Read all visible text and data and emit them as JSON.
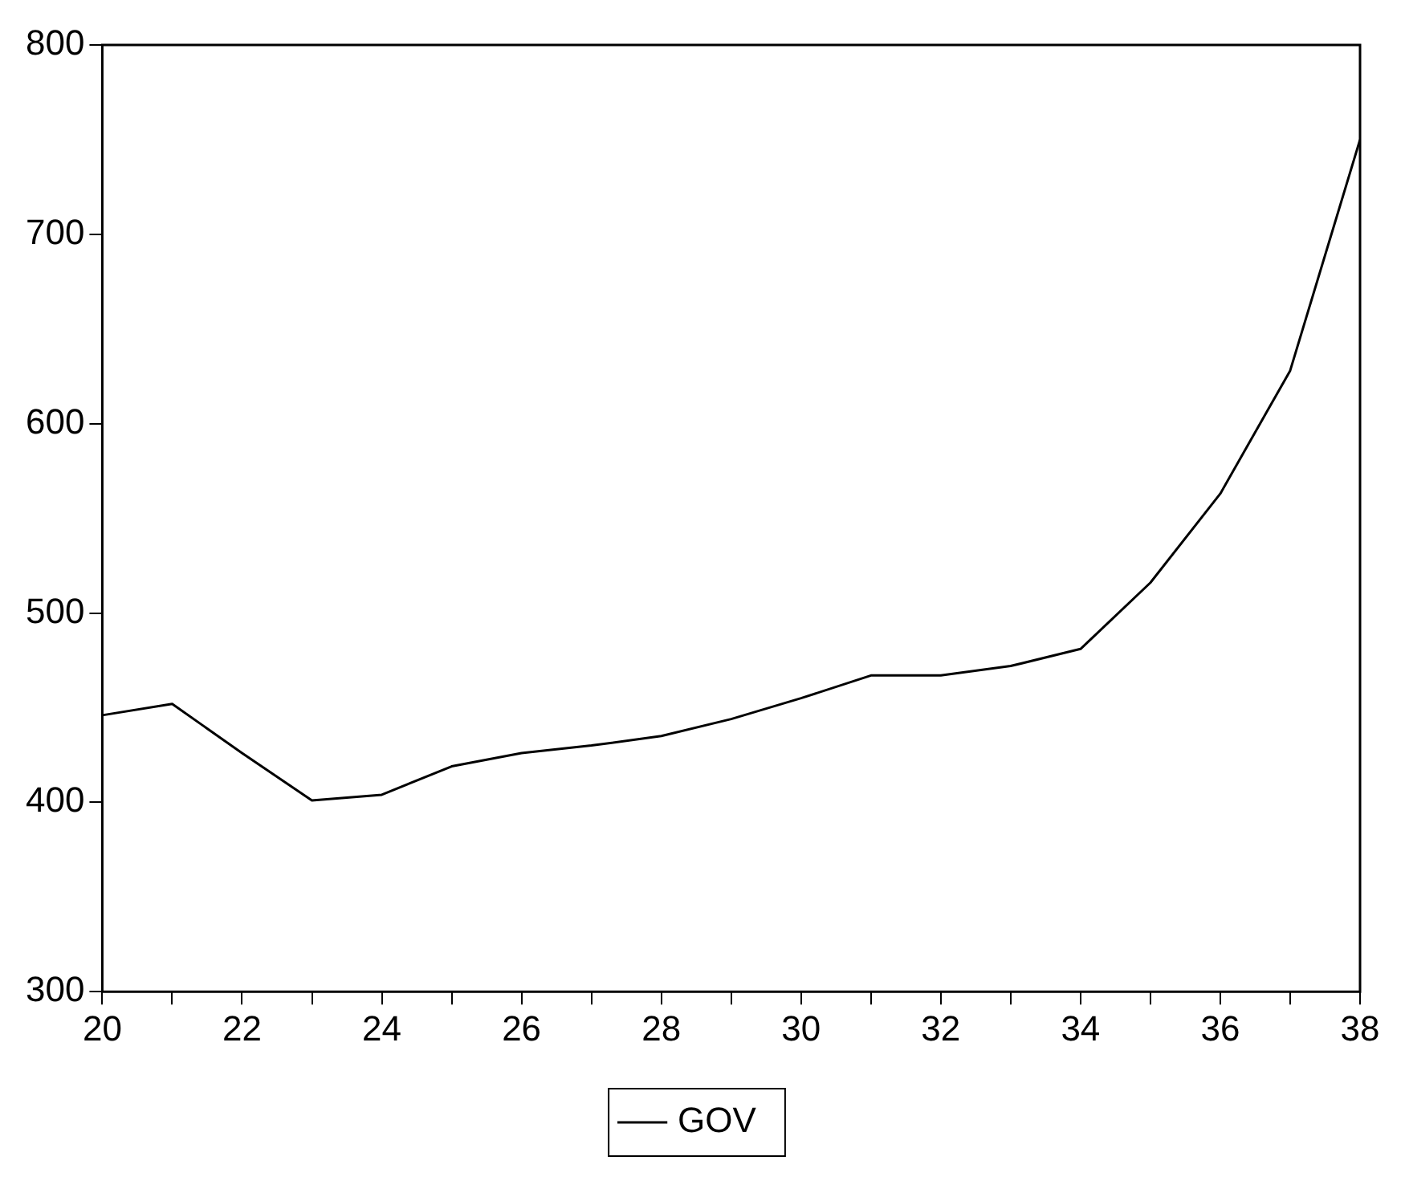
{
  "chart_data": {
    "type": "line",
    "x": [
      20,
      21,
      22,
      23,
      24,
      25,
      26,
      27,
      28,
      29,
      30,
      31,
      32,
      33,
      34,
      35,
      36,
      37,
      38
    ],
    "series": [
      {
        "name": "GOV",
        "color": "#000000",
        "values": [
          446,
          452,
          426,
          401,
          404,
          419,
          426,
          430,
          435,
          444,
          455,
          467,
          467,
          472,
          481,
          516,
          563,
          628,
          750
        ]
      }
    ],
    "xlim": [
      20,
      38
    ],
    "xticks": [
      20,
      {
        "value": 21,
        "label": null
      },
      22,
      {
        "value": 23,
        "label": null
      },
      24,
      {
        "value": 25,
        "label": null
      },
      26,
      {
        "value": 27,
        "label": null
      },
      28,
      {
        "value": 29,
        "label": null
      },
      30,
      {
        "value": 31,
        "label": null
      },
      32,
      {
        "value": 33,
        "label": null
      },
      34,
      {
        "value": 35,
        "label": null
      },
      36,
      {
        "value": 37,
        "label": null
      },
      38
    ],
    "ylim": [
      300,
      800
    ],
    "yticks": [
      300,
      400,
      500,
      600,
      700,
      800
    ],
    "grid": false,
    "legend": "bottom",
    "marker": "none",
    "line_style": "solid"
  }
}
